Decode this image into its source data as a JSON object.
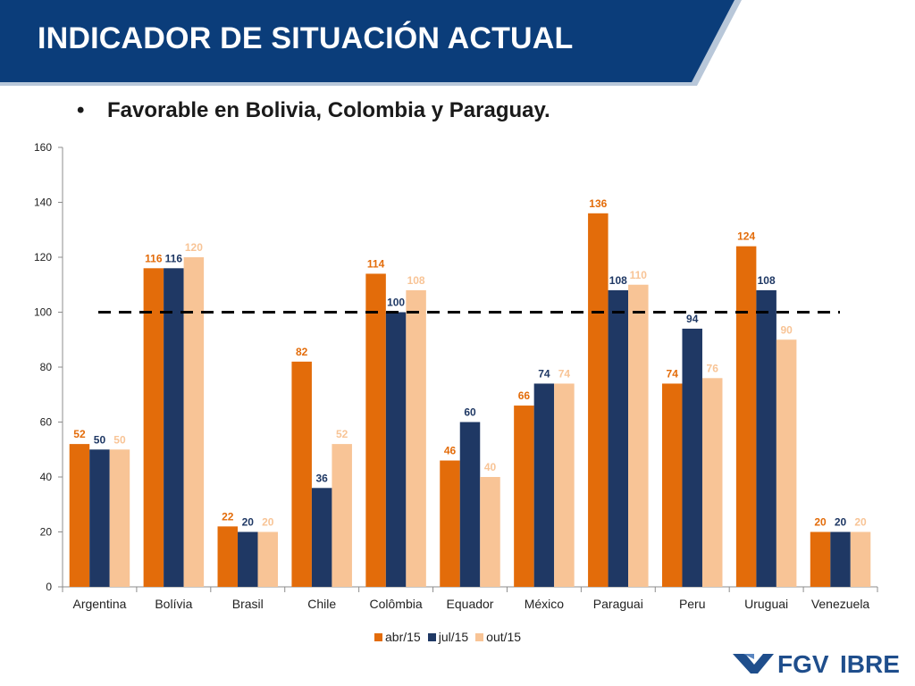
{
  "slide": {
    "title": "INDICADOR DE SITUACIÓN ACTUAL",
    "bullet": "Favorable en Bolivia, Colombia y Paraguay."
  },
  "logo": {
    "text_fgv": "FGV",
    "text_ibre": "IBRE"
  },
  "colors": {
    "banner": "#0b3d7a",
    "banner_accent": "#b8c7d9",
    "abr15": "#e36c0a",
    "jul15": "#1f3864",
    "out15": "#f8c496",
    "reference_line": "#000000",
    "logo": "#1f4e8c"
  },
  "chart_data": {
    "type": "bar",
    "categories": [
      "Argentina",
      "Bolívia",
      "Brasil",
      "Chile",
      "Colômbia",
      "Equador",
      "México",
      "Paraguai",
      "Peru",
      "Uruguai",
      "Venezuela"
    ],
    "series": [
      {
        "name": "abr/15",
        "color": "#e36c0a",
        "values": [
          52,
          116,
          22,
          82,
          114,
          46,
          66,
          136,
          74,
          124,
          20
        ]
      },
      {
        "name": "jul/15",
        "color": "#1f3864",
        "values": [
          50,
          116,
          20,
          36,
          100,
          60,
          74,
          108,
          94,
          108,
          20
        ]
      },
      {
        "name": "out/15",
        "color": "#f8c496",
        "values": [
          50,
          120,
          20,
          52,
          108,
          40,
          74,
          110,
          76,
          90,
          20
        ]
      }
    ],
    "yticks": [
      0,
      20,
      40,
      60,
      80,
      100,
      120,
      140,
      160
    ],
    "ylim": [
      0,
      160
    ],
    "reference_line": 100,
    "grid": false,
    "legend_position": "bottom",
    "data_labels": true
  }
}
